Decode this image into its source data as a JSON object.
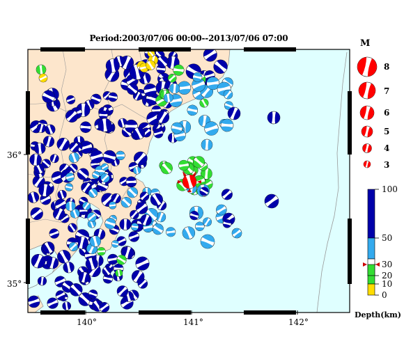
{
  "title": "Period:2003/07/06 00:00--2013/07/06 07:00",
  "axes": {
    "x_ticks": [
      "140°",
      "141°",
      "142°"
    ],
    "y_ticks": [
      "36°",
      "35°"
    ]
  },
  "magnitude_legend": {
    "title": "M",
    "labels": [
      "8",
      "7",
      "6",
      "5",
      "4",
      "3"
    ],
    "color": "#ff0000"
  },
  "depth_scale": {
    "title": "Depth(km)",
    "ticks": [
      "100",
      "50",
      "30",
      "20",
      "10",
      "0"
    ],
    "colors": {
      "deep": "#0000aa",
      "mid": "#33aaee",
      "shallow": "#33dd33",
      "surface": "#ffdd00"
    }
  },
  "map": {
    "land_color": "#fde6cc",
    "sea_color": "#dfffff",
    "highlight_event_color": "#ff0000"
  }
}
